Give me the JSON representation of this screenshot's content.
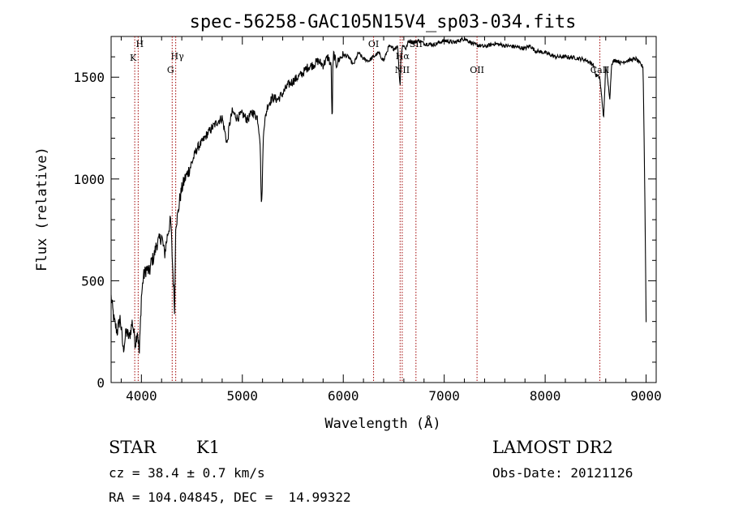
{
  "chart_data": {
    "type": "line",
    "title": "spec-56258-GAC105N15V4_sp03-034.fits",
    "xlabel": "Wavelength (Å)",
    "ylabel": "Flux (relative)",
    "xlim": [
      3700,
      9100
    ],
    "ylim": [
      0,
      1700
    ],
    "xticks": [
      4000,
      5000,
      6000,
      7000,
      8000,
      9000
    ],
    "yticks": [
      0,
      500,
      1000,
      1500
    ],
    "series": [
      {
        "name": "spectrum",
        "x": [
          3700,
          3730,
          3760,
          3790,
          3820,
          3850,
          3880,
          3910,
          3940,
          3960,
          3980,
          4000,
          4020,
          4050,
          4080,
          4100,
          4120,
          4150,
          4180,
          4200,
          4230,
          4260,
          4290,
          4310,
          4330,
          4340,
          4360,
          4380,
          4400,
          4430,
          4460,
          4500,
          4550,
          4600,
          4650,
          4700,
          4750,
          4800,
          4850,
          4870,
          4900,
          4950,
          5000,
          5050,
          5100,
          5150,
          5175,
          5190,
          5210,
          5250,
          5300,
          5350,
          5400,
          5450,
          5500,
          5550,
          5600,
          5650,
          5700,
          5750,
          5800,
          5850,
          5880,
          5890,
          5896,
          5905,
          5930,
          5960,
          6000,
          6050,
          6100,
          6150,
          6200,
          6250,
          6300,
          6350,
          6400,
          6450,
          6500,
          6540,
          6555,
          6563,
          6570,
          6590,
          6620,
          6650,
          6700,
          6750,
          6800,
          6900,
          7000,
          7100,
          7200,
          7300,
          7400,
          7500,
          7600,
          7700,
          7800,
          7850,
          7900,
          8000,
          8100,
          8200,
          8300,
          8400,
          8480,
          8500,
          8540,
          8560,
          8580,
          8600,
          8640,
          8660,
          8700,
          8750,
          8800,
          8850,
          8900,
          8950,
          8970,
          8980,
          8990,
          9000
        ],
        "y": [
          420,
          300,
          250,
          320,
          160,
          250,
          220,
          300,
          190,
          260,
          140,
          420,
          520,
          560,
          540,
          600,
          610,
          680,
          700,
          720,
          630,
          730,
          800,
          560,
          350,
          780,
          820,
          900,
          950,
          1000,
          1030,
          1080,
          1150,
          1180,
          1220,
          1250,
          1280,
          1300,
          1170,
          1260,
          1330,
          1300,
          1320,
          1290,
          1330,
          1300,
          1200,
          840,
          1250,
          1360,
          1400,
          1390,
          1420,
          1460,
          1480,
          1500,
          1520,
          1550,
          1560,
          1580,
          1560,
          1600,
          1550,
          1240,
          1530,
          1620,
          1560,
          1590,
          1610,
          1600,
          1560,
          1620,
          1590,
          1580,
          1600,
          1620,
          1580,
          1650,
          1640,
          1650,
          1510,
          1450,
          1600,
          1660,
          1640,
          1680,
          1670,
          1680,
          1665,
          1660,
          1680,
          1670,
          1690,
          1660,
          1650,
          1665,
          1655,
          1650,
          1640,
          1655,
          1630,
          1620,
          1600,
          1600,
          1595,
          1585,
          1560,
          1510,
          1500,
          1400,
          1300,
          1560,
          1400,
          1570,
          1585,
          1570,
          1580,
          1585,
          1590,
          1560,
          1550,
          1200,
          800,
          300
        ]
      }
    ],
    "lines": [
      {
        "label": "H",
        "x": 3968
      },
      {
        "label": "K",
        "x": 3934
      },
      {
        "label": "Hγ",
        "x": 4340
      },
      {
        "label": "G",
        "x": 4305
      },
      {
        "label": "OI",
        "x": 6300
      },
      {
        "label": "Hα",
        "x": 6563
      },
      {
        "label": "NII",
        "x": 6584
      },
      {
        "label": "SII",
        "x": 6720
      },
      {
        "label": "OII",
        "x": 7325
      },
      {
        "label": "CaII",
        "x": 8542
      }
    ]
  },
  "info": {
    "class_label": "STAR",
    "subclass": "K1",
    "survey": "LAMOST DR2",
    "cz": "cz = 38.4 ± 0.7 km/s",
    "obs_date": "Obs-Date: 20121126",
    "coords": "RA = 104.04845, DEC =  14.99322"
  },
  "colors": {
    "axis": "#000000",
    "spectrum": "#000000",
    "marker": "#a00000"
  }
}
